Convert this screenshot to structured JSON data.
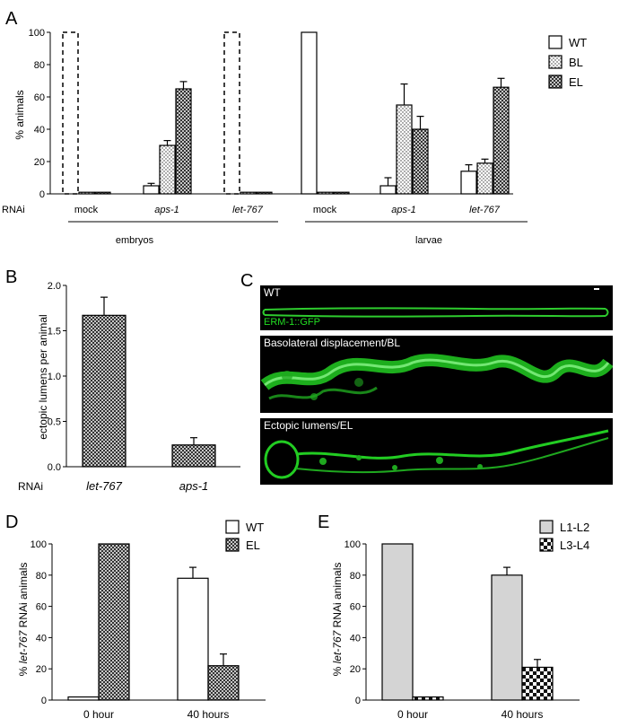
{
  "panels": {
    "A": {
      "letter": "A",
      "ylabel": "% animals",
      "row_label": "RNAi",
      "groups": [
        "embryos",
        "larvae"
      ],
      "legend": [
        {
          "name": "WT",
          "pattern": "open"
        },
        {
          "name": "BL",
          "pattern": "dots"
        },
        {
          "name": "EL",
          "pattern": "cross"
        }
      ]
    },
    "B": {
      "letter": "B",
      "ylabel": "ectopic lumens per animal",
      "row_label": "RNAi"
    },
    "C": {
      "letter": "C",
      "image_labels": [
        "WT",
        "Basolateral displacement/BL",
        "Ectopic lumens/EL"
      ],
      "marker_label": "ERM-1::GFP"
    },
    "D": {
      "letter": "D",
      "ylabel_prefix": "% ",
      "ylabel_italic": "let-767",
      "ylabel_suffix": " RNAi animals",
      "legend": [
        {
          "name": "WT",
          "pattern": "open"
        },
        {
          "name": "EL",
          "pattern": "cross"
        }
      ]
    },
    "E": {
      "letter": "E",
      "ylabel_prefix": "% ",
      "ylabel_italic": "let-767",
      "ylabel_suffix": " RNAi animals",
      "legend": [
        {
          "name": "L1-L2",
          "pattern": "gray"
        },
        {
          "name": "L3-L4",
          "pattern": "checker"
        }
      ]
    }
  },
  "chart_data": [
    {
      "panel": "A",
      "type": "bar",
      "ylabel": "% animals",
      "ylim": [
        0,
        100
      ],
      "yticks": [
        0,
        20,
        40,
        60,
        80,
        100
      ],
      "categories": [
        "mock",
        "aps-1",
        "let-767",
        "mock",
        "aps-1",
        "let-767"
      ],
      "category_italic": [
        false,
        true,
        true,
        false,
        true,
        true
      ],
      "group_of_category": [
        "embryos",
        "embryos",
        "embryos",
        "larvae",
        "larvae",
        "larvae"
      ],
      "series": [
        {
          "name": "WT",
          "values": [
            100,
            5,
            100,
            100,
            5,
            14
          ],
          "errors": [
            0,
            1.5,
            0,
            0,
            5,
            4
          ],
          "dashed": [
            true,
            false,
            true,
            false,
            false,
            false
          ]
        },
        {
          "name": "BL",
          "values": [
            1,
            30,
            1,
            1,
            55,
            19
          ],
          "errors": [
            0,
            3,
            0,
            0,
            13,
            2.5
          ]
        },
        {
          "name": "EL",
          "values": [
            1,
            65,
            1,
            1,
            40,
            66
          ],
          "errors": [
            0,
            4.5,
            0,
            0,
            8,
            5.5
          ]
        }
      ]
    },
    {
      "panel": "B",
      "type": "bar",
      "ylabel": "ectopic lumens per animal",
      "ylim": [
        0,
        2.0
      ],
      "yticks": [
        "0.0",
        "0.5",
        "1.0",
        "1.5",
        "2.0"
      ],
      "categories": [
        "let-767",
        "aps-1"
      ],
      "values": [
        1.67,
        0.24
      ],
      "errors": [
        0.2,
        0.08
      ]
    },
    {
      "panel": "D",
      "type": "bar",
      "ylim": [
        0,
        100
      ],
      "yticks": [
        0,
        20,
        40,
        60,
        80,
        100
      ],
      "categories": [
        "0 hour",
        "40 hours"
      ],
      "series": [
        {
          "name": "WT",
          "values": [
            2,
            78
          ],
          "errors": [
            0,
            7
          ]
        },
        {
          "name": "EL",
          "values": [
            100,
            22
          ],
          "errors": [
            0,
            7.5
          ]
        }
      ]
    },
    {
      "panel": "E",
      "type": "bar",
      "ylim": [
        0,
        100
      ],
      "yticks": [
        0,
        20,
        40,
        60,
        80,
        100
      ],
      "categories": [
        "0 hour",
        "40 hours"
      ],
      "series": [
        {
          "name": "L1-L2",
          "values": [
            100,
            80
          ],
          "errors": [
            0,
            5
          ]
        },
        {
          "name": "L3-L4",
          "values": [
            2,
            21
          ],
          "errors": [
            0,
            5
          ]
        }
      ]
    }
  ]
}
